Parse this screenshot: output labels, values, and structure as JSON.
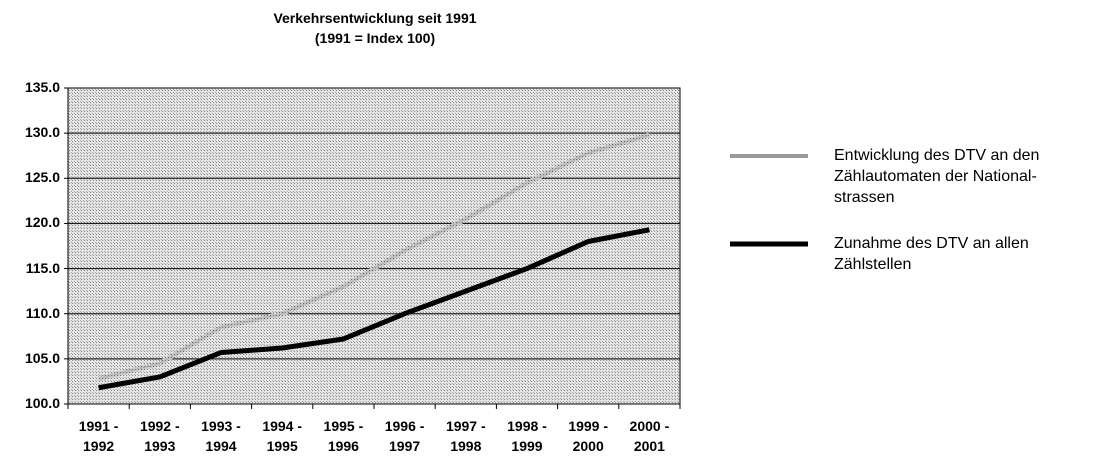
{
  "chart_data": {
    "type": "line",
    "title": "Verkehrsentwicklung seit 1991",
    "subtitle": "(1991 = Index 100)",
    "categories": [
      "1991 - 1992",
      "1992 - 1993",
      "1993 - 1994",
      "1994 - 1995",
      "1995 - 1996",
      "1996 - 1997",
      "1997 - 1998",
      "1998 - 1999",
      "1999 - 2000",
      "2000 - 2001"
    ],
    "series": [
      {
        "name": "Entwicklung des DTV an den Zählautomaten der National-strassen",
        "color": "#9a9a9a",
        "values": [
          102.8,
          104.5,
          108.5,
          110.0,
          113.0,
          117.0,
          120.5,
          124.5,
          127.8,
          129.8
        ]
      },
      {
        "name": "Zunahme des DTV an allen Zählstellen",
        "color": "#000000",
        "values": [
          101.8,
          103.0,
          105.7,
          106.2,
          107.2,
          110.0,
          112.5,
          115.0,
          118.0,
          119.3
        ]
      }
    ],
    "ylim": [
      100,
      135
    ],
    "yticks": [
      {
        "value": 100,
        "label": "100.0"
      },
      {
        "value": 105,
        "label": "105.0"
      },
      {
        "value": 110,
        "label": "110.0"
      },
      {
        "value": 115,
        "label": "115.0"
      },
      {
        "value": 120,
        "label": "120.0"
      },
      {
        "value": 125,
        "label": "125.0"
      },
      {
        "value": 130,
        "label": "130.0"
      },
      {
        "value": 135,
        "label": "135.0"
      }
    ],
    "grid": true,
    "legend": "right"
  }
}
